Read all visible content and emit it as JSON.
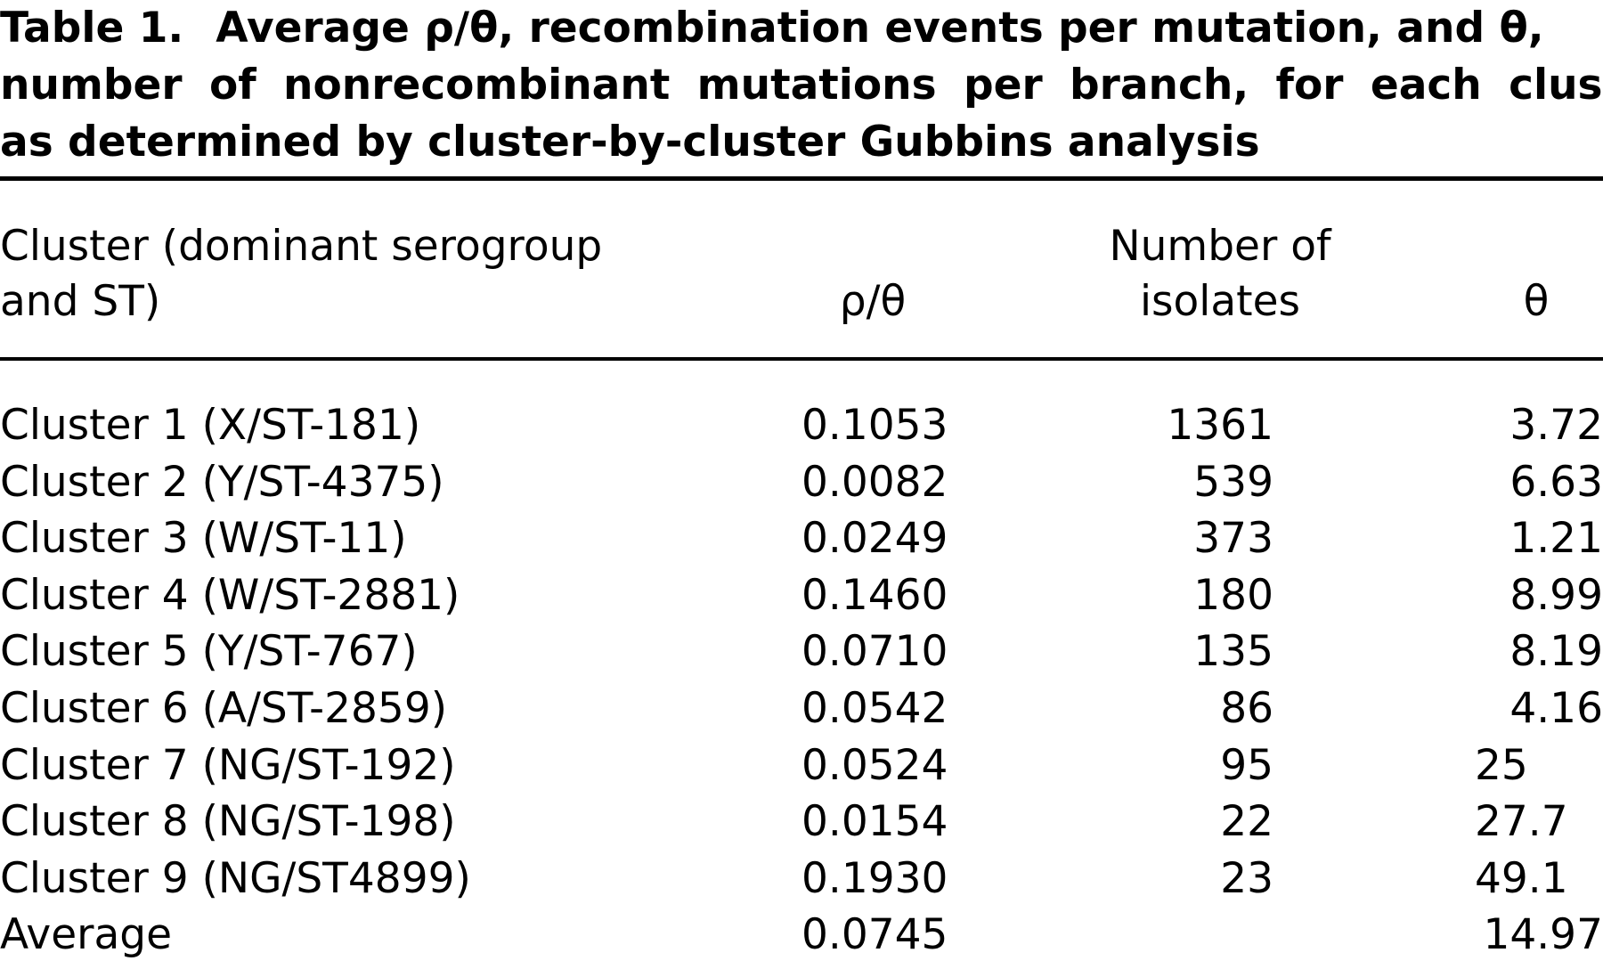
{
  "caption": {
    "label": "Table 1.",
    "line1": "Average ρ/θ, recombination events per mutation, and θ,",
    "line2": "number of nonrecombinant mutations per branch, for each cluster",
    "line3": "as determined by cluster-by-cluster Gubbins analysis"
  },
  "headers": {
    "cluster_line1": "Cluster (dominant serogroup",
    "cluster_line2": "and ST)",
    "rho_theta": "ρ/θ",
    "isolates_line1": "Number of",
    "isolates_line2": "isolates",
    "theta": "θ"
  },
  "rows": [
    {
      "cluster": "Cluster 1 (X/ST-181)",
      "rho_theta": "0.1053",
      "isolates": "1361",
      "theta": "3.72"
    },
    {
      "cluster": "Cluster 2 (Y/ST-4375)",
      "rho_theta": "0.0082",
      "isolates": "539",
      "theta": "6.63"
    },
    {
      "cluster": "Cluster 3 (W/ST-11)",
      "rho_theta": "0.0249",
      "isolates": "373",
      "theta": "1.21"
    },
    {
      "cluster": "Cluster 4 (W/ST-2881)",
      "rho_theta": "0.1460",
      "isolates": "180",
      "theta": "8.99"
    },
    {
      "cluster": "Cluster 5 (Y/ST-767)",
      "rho_theta": "0.0710",
      "isolates": "135",
      "theta": "8.19"
    },
    {
      "cluster": "Cluster 6 (A/ST-2859)",
      "rho_theta": "0.0542",
      "isolates": "86",
      "theta": "4.16"
    },
    {
      "cluster": "Cluster 7 (NG/ST-192)",
      "rho_theta": "0.0524",
      "isolates": "95",
      "theta": "25"
    },
    {
      "cluster": "Cluster 8 (NG/ST-198)",
      "rho_theta": "0.0154",
      "isolates": "22",
      "theta": "27.7"
    },
    {
      "cluster": "Cluster 9 (NG/ST4899)",
      "rho_theta": "0.1930",
      "isolates": "23",
      "theta": "49.1"
    },
    {
      "cluster": "Average",
      "rho_theta": "0.0745",
      "isolates": "",
      "theta": "14.97"
    }
  ]
}
